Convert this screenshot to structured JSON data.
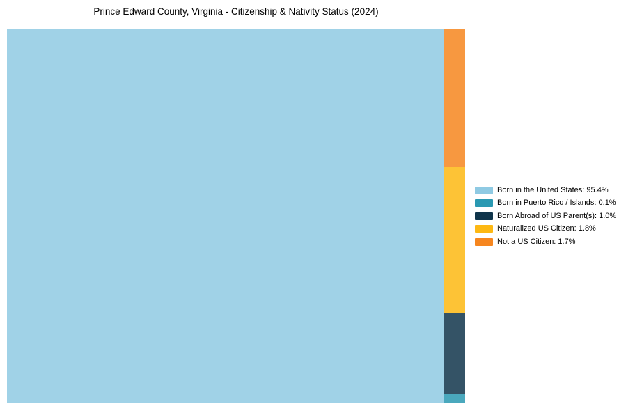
{
  "chart_data": {
    "type": "treemap",
    "title": "Prince Edward County, Virginia - Citizenship & Nativity Status (2024)",
    "unit": "%",
    "total": 100,
    "categories": [
      "Born in the United States",
      "Born in Puerto Rico / Islands",
      "Born Abroad of US Parent(s)",
      "Naturalized US Citizen",
      "Not a US Citizen"
    ],
    "values": [
      95.4,
      0.1,
      1.0,
      1.8,
      1.7
    ],
    "colors": [
      "#8FCAE3",
      "#2A99B2",
      "#10354B",
      "#FDB813",
      "#F6861F"
    ],
    "legend_entries": [
      "Born in the United States: 95.4%",
      "Born in Puerto Rico / Islands: 0.1%",
      "Born Abroad of US Parent(s): 1.0%",
      "Naturalized US Citizen: 1.8%",
      "Not a US Citizen: 1.7%"
    ],
    "layout": {
      "legend_position": "right",
      "grid": false,
      "main_segment_index": 0,
      "column_order_top_to_bottom": [
        4,
        3,
        2,
        1
      ],
      "segment_fill_opacity": 0.85
    }
  }
}
